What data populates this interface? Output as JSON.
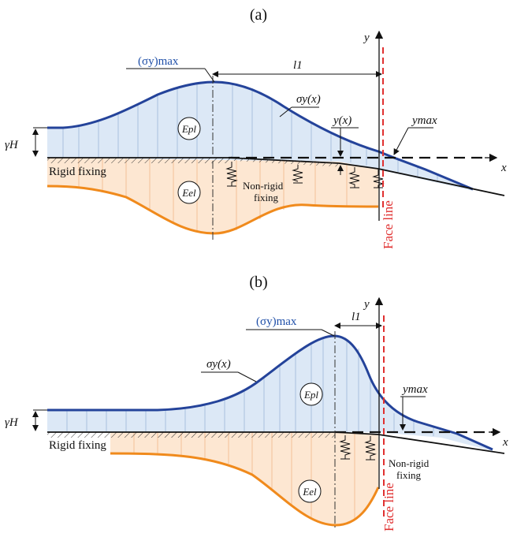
{
  "panels": [
    {
      "id": "a",
      "title": "(a)",
      "sigma_max_label": "(σy)max",
      "l_label": "l1",
      "sigma_curve_label": "σy(x)",
      "y_x_label": "y(x)",
      "ymax_label": "ymax",
      "epl_label": "Epl",
      "eel_label": "Eel",
      "gamma_h_label": "γH",
      "rigid_label": "Rigid fixing",
      "nonrigid_label_1": "Non-rigid",
      "nonrigid_label_2": "fixing",
      "face_label": "Face line",
      "axis_x": "x",
      "axis_y": "y"
    },
    {
      "id": "b",
      "title": "(b)",
      "sigma_max_label": "(σy)max",
      "l_label": "l1",
      "sigma_curve_label": "σy(x)",
      "ymax_label": "ymax",
      "epl_label": "Epl",
      "eel_label": "Eel",
      "gamma_h_label": "γH",
      "rigid_label": "Rigid fixing",
      "nonrigid_label_1": "Non-rigid",
      "nonrigid_label_2": "fixing",
      "face_label": "Face line",
      "axis_x": "x",
      "axis_y": "y"
    }
  ],
  "colors": {
    "stress_curve": "#24439a",
    "stress_fill": "#dce8f6",
    "elastic_curve": "#f08a1c",
    "elastic_fill": "#fde7d2",
    "face_line": "#e03030"
  }
}
